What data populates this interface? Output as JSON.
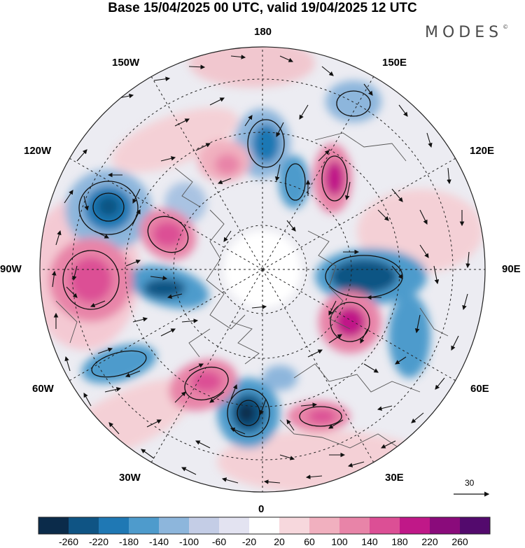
{
  "title": "Base 15/04/2025 00 UTC, valid 19/04/2025 12 UTC",
  "brand": "MODES",
  "brand_mark": "©",
  "longitudes": {
    "top": "180",
    "bottom": "0",
    "left": "90W",
    "right": "90E",
    "w150": "150W",
    "e150": "150E",
    "w120": "120W",
    "e120": "120E",
    "w60": "60W",
    "e60": "60E",
    "w30": "30W",
    "e30": "30E"
  },
  "reference_vector": "30",
  "colorbar": {
    "ticks": [
      "-260",
      "-220",
      "-180",
      "-140",
      "-100",
      "-60",
      "-20",
      "20",
      "60",
      "100",
      "140",
      "180",
      "220",
      "260"
    ],
    "colors": [
      "#0b2b4a",
      "#0f5484",
      "#1f78b4",
      "#4e9bcc",
      "#8db6dc",
      "#c4cde6",
      "#e3e3f1",
      "#ffffff",
      "#f7d8dd",
      "#f1b0bf",
      "#e884a8",
      "#dc4f95",
      "#c01888",
      "#8a0b7b",
      "#530a6d"
    ]
  },
  "map": {
    "projection": "north polar stereographic",
    "anomalies": [
      {
        "sign": "negative",
        "level": -220,
        "region": "Alaska / Bering"
      },
      {
        "sign": "negative",
        "level": -180,
        "region": "East Siberian Sea"
      },
      {
        "sign": "negative",
        "level": -220,
        "region": "Western Siberia"
      },
      {
        "sign": "negative",
        "level": -260,
        "region": "North Atlantic"
      },
      {
        "sign": "negative",
        "level": -140,
        "region": "Canada"
      },
      {
        "sign": "positive",
        "level": 180,
        "region": "Northeast Pacific"
      },
      {
        "sign": "positive",
        "level": 180,
        "region": "Eastern Siberia"
      },
      {
        "sign": "positive",
        "level": 180,
        "region": "Scandinavia / Northern Russia"
      },
      {
        "sign": "positive",
        "level": 140,
        "region": "Mediterranean"
      },
      {
        "sign": "positive",
        "level": 140,
        "region": "Greenland"
      }
    ]
  }
}
